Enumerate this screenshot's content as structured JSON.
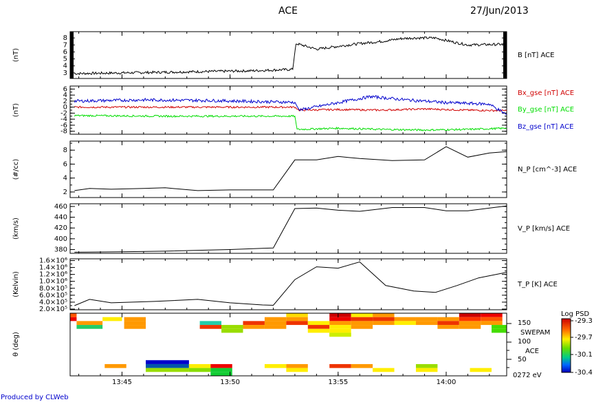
{
  "header": {
    "title": "ACE",
    "date": "27/Jun/2013"
  },
  "footer": {
    "credit": "Produced by CLWeb"
  },
  "chart_data": {
    "type": "line",
    "x_ticks": [
      {
        "t": 45.0,
        "label": "13:45"
      },
      {
        "t": 50.0,
        "label": "13:50"
      },
      {
        "t": 55.0,
        "label": "13:55"
      },
      {
        "t": 60.0,
        "label": "14:00"
      }
    ],
    "xlim_minutes_after_1300": [
      42.6,
      62.8
    ],
    "panels": [
      {
        "id": "b",
        "ylabel": "(nT)",
        "ylim": [
          2.2,
          8.9
        ],
        "yticks": [
          3,
          4,
          5,
          6,
          7,
          8
        ],
        "ytick_labels": [
          "3",
          "4",
          "5",
          "6",
          "7",
          "8"
        ],
        "series": [
          {
            "name": "B [nT] ACE",
            "color": "#000000",
            "noise": 0.18,
            "x": [
              42.8,
              45,
              47,
              49,
              51,
              52.9,
              53.05,
              53.3,
              54,
              55,
              56,
              57,
              57.9,
              58.5,
              59.5,
              60.5,
              61,
              62.8
            ],
            "y": [
              2.9,
              3.0,
              3.1,
              3.2,
              3.3,
              3.5,
              7.2,
              7.0,
              6.4,
              6.8,
              7.2,
              7.5,
              7.9,
              8.0,
              8.0,
              7.3,
              7.0,
              7.1
            ]
          }
        ]
      },
      {
        "id": "bxyz",
        "ylabel": "(nT)",
        "ylim": [
          -9,
          7
        ],
        "yticks": [
          -8,
          -6,
          -4,
          -2,
          0,
          2,
          4,
          6
        ],
        "ytick_labels": [
          "-8",
          "-6",
          "-4",
          "-2",
          "0",
          "2",
          "4",
          "6"
        ],
        "series": [
          {
            "name": "Bx_gse [nT] ACE",
            "color": "#d00000",
            "noise": 0.3,
            "x": [
              42.8,
              53.0,
              53.2,
              55,
              57,
              59,
              61,
              62.8
            ],
            "y": [
              0.0,
              0.0,
              -1.0,
              -0.8,
              -1.0,
              -0.6,
              -1.0,
              -1.2
            ]
          },
          {
            "name": "By_gse [nT] ACE",
            "color": "#00dd00",
            "noise": 0.3,
            "x": [
              42.8,
              47,
              53.0,
              53.1,
              55,
              57,
              59,
              61,
              62.8
            ],
            "y": [
              -2.8,
              -3.0,
              -3.0,
              -7.4,
              -7.0,
              -7.4,
              -7.6,
              -7.4,
              -7.0
            ]
          },
          {
            "name": "Bz_gse [nT] ACE",
            "color": "#0000cc",
            "noise": 0.5,
            "x": [
              42.8,
              46,
              49,
              53.0,
              53.2,
              55,
              56.5,
              58,
              60,
              62,
              62.8
            ],
            "y": [
              2.0,
              2.4,
              2.2,
              1.6,
              -1.0,
              1.5,
              3.5,
              2.5,
              1.5,
              1.0,
              -2.5
            ]
          }
        ]
      },
      {
        "id": "np",
        "ylabel": "(#/cc)",
        "ylim": [
          1.2,
          9.3
        ],
        "yticks": [
          2,
          4,
          6,
          8
        ],
        "ytick_labels": [
          "2",
          "4",
          "6",
          "8"
        ],
        "series": [
          {
            "name": "N_P [cm^-3] ACE",
            "color": "#000000",
            "noise": 0,
            "x": [
              42.8,
              43.5,
              44.5,
              46,
              47,
              48.5,
              50,
              52.0,
              53.0,
              54.0,
              55.0,
              56.0,
              57.5,
              59.0,
              60.0,
              61.0,
              62.0,
              62.8
            ],
            "y": [
              2.2,
              2.5,
              2.4,
              2.5,
              2.6,
              2.2,
              2.3,
              2.3,
              6.6,
              6.6,
              7.1,
              6.8,
              6.5,
              6.6,
              8.5,
              7.0,
              7.6,
              7.8
            ]
          }
        ]
      },
      {
        "id": "vp",
        "ylabel": "(km/s)",
        "ylim": [
          373,
          465
        ],
        "yticks": [
          380,
          400,
          420,
          440,
          460
        ],
        "ytick_labels": [
          "380",
          "400",
          "420",
          "440",
          "460"
        ],
        "series": [
          {
            "name": "V_P [km/s] ACE",
            "color": "#000000",
            "noise": 0,
            "x": [
              42.8,
              45,
              47,
              50,
              52.0,
              53.0,
              54.0,
              55.0,
              56.0,
              57.5,
              59.0,
              60.0,
              61.0,
              62.8
            ],
            "y": [
              375,
              376,
              377,
              380,
              383,
              456,
              457,
              453,
              451,
              458,
              458,
              452,
              452,
              461
            ]
          }
        ]
      },
      {
        "id": "tp",
        "ylabel": "(Kelvin)",
        "ylim": [
          180000,
          1650000
        ],
        "yticks": [
          200000,
          400000,
          600000,
          800000,
          1000000,
          1200000,
          1400000,
          1600000
        ],
        "ytick_labels": [
          "2.0×10⁵",
          "4.0×10⁵",
          "6.0×10⁵",
          "8.0×10⁵",
          "1.0×10⁶",
          "1.2×10⁶",
          "1.4×10⁶",
          "1.6×10⁶"
        ],
        "series": [
          {
            "name": "T_P [K] ACE",
            "color": "#000000",
            "noise": 0,
            "x": [
              42.8,
              43.5,
              44.5,
              46.5,
              48.5,
              50.0,
              51.5,
              52.0,
              53.0,
              54.0,
              55.0,
              56.0,
              57.2,
              58.5,
              59.5,
              60.5,
              61.5,
              62.8
            ],
            "y": [
              300000,
              480000,
              380000,
              420000,
              480000,
              380000,
              320000,
              310000,
              1050000,
              1420000,
              1380000,
              1560000,
              880000,
              720000,
              680000,
              880000,
              1100000,
              1260000
            ]
          }
        ]
      }
    ],
    "spectrogram": {
      "ylabel": "θ (deg)",
      "right_labels": [
        "150",
        "SWEPAM",
        "100",
        "ACE",
        "50",
        "0272 eV"
      ],
      "colorbar": {
        "title": "Log PSD",
        "ticks": [
          "-29.3",
          "-29.7",
          "-30.1",
          "-30.4"
        ]
      },
      "cells": [
        {
          "x0": 42.6,
          "x1": 42.9,
          "b": 1,
          "c": "#ee0000"
        },
        {
          "x0": 42.6,
          "x1": 42.9,
          "b": 0,
          "c": "#ff5500"
        },
        {
          "x0": 42.9,
          "x1": 44.1,
          "b": 2,
          "c": "#ff9900"
        },
        {
          "x0": 42.9,
          "x1": 44.1,
          "b": 3,
          "c": "#22cc66"
        },
        {
          "x0": 44.1,
          "x1": 45.0,
          "b": 1,
          "c": "#ffee00"
        },
        {
          "x0": 45.1,
          "x1": 46.1,
          "b": 1,
          "c": "#ff9900"
        },
        {
          "x0": 45.1,
          "x1": 46.1,
          "b": 2,
          "c": "#ff9900"
        },
        {
          "x0": 45.1,
          "x1": 46.1,
          "b": 3,
          "c": "#ff9900"
        },
        {
          "x0": 48.6,
          "x1": 49.6,
          "b": 2,
          "c": "#22ccaa"
        },
        {
          "x0": 48.6,
          "x1": 49.6,
          "b": 3,
          "c": "#ee3300"
        },
        {
          "x0": 49.6,
          "x1": 50.6,
          "b": 3,
          "c": "#99dd00"
        },
        {
          "x0": 49.6,
          "x1": 50.6,
          "b": 4,
          "c": "#99dd00"
        },
        {
          "x0": 50.6,
          "x1": 51.6,
          "b": 2,
          "c": "#ee3300"
        },
        {
          "x0": 50.6,
          "x1": 51.6,
          "b": 3,
          "c": "#ff9900"
        },
        {
          "x0": 51.6,
          "x1": 52.6,
          "b": 1,
          "c": "#ff9900"
        },
        {
          "x0": 51.6,
          "x1": 52.6,
          "b": 2,
          "c": "#ff9900"
        },
        {
          "x0": 51.6,
          "x1": 52.6,
          "b": 3,
          "c": "#ff9900"
        },
        {
          "x0": 52.6,
          "x1": 53.6,
          "b": 0,
          "c": "#ffdd00"
        },
        {
          "x0": 52.6,
          "x1": 53.6,
          "b": 1,
          "c": "#ff9900"
        },
        {
          "x0": 52.6,
          "x1": 53.6,
          "b": 2,
          "c": "#ee3300"
        },
        {
          "x0": 53.6,
          "x1": 54.6,
          "b": 2,
          "c": "#ffee00"
        },
        {
          "x0": 53.6,
          "x1": 54.6,
          "b": 3,
          "c": "#ee3300"
        },
        {
          "x0": 54.6,
          "x1": 55.6,
          "b": 0,
          "c": "#cc0000"
        },
        {
          "x0": 54.6,
          "x1": 55.6,
          "b": 1,
          "c": "#ee0000"
        },
        {
          "x0": 54.6,
          "x1": 55.6,
          "b": 2,
          "c": "#ff9900"
        },
        {
          "x0": 54.6,
          "x1": 55.6,
          "b": 3,
          "c": "#ffee00"
        },
        {
          "x0": 54.6,
          "x1": 55.6,
          "b": 4,
          "c": "#ffee00"
        },
        {
          "x0": 54.6,
          "x1": 55.6,
          "b": 5,
          "c": "#ccee00"
        },
        {
          "x0": 55.6,
          "x1": 56.6,
          "b": 0,
          "c": "#ffee00"
        },
        {
          "x0": 55.6,
          "x1": 56.6,
          "b": 1,
          "c": "#ee3300"
        },
        {
          "x0": 55.6,
          "x1": 56.6,
          "b": 2,
          "c": "#ff9900"
        },
        {
          "x0": 55.6,
          "x1": 56.6,
          "b": 3,
          "c": "#ff9900"
        },
        {
          "x0": 56.6,
          "x1": 57.6,
          "b": 0,
          "c": "#ff9900"
        },
        {
          "x0": 56.6,
          "x1": 57.6,
          "b": 1,
          "c": "#ee3300"
        },
        {
          "x0": 56.6,
          "x1": 57.6,
          "b": 2,
          "c": "#ff9900"
        },
        {
          "x0": 57.6,
          "x1": 58.6,
          "b": 1,
          "c": "#ff9900"
        },
        {
          "x0": 57.6,
          "x1": 58.6,
          "b": 2,
          "c": "#ffee00"
        },
        {
          "x0": 58.6,
          "x1": 59.6,
          "b": 1,
          "c": "#ff9900"
        },
        {
          "x0": 58.6,
          "x1": 59.6,
          "b": 2,
          "c": "#ff9900"
        },
        {
          "x0": 59.6,
          "x1": 60.6,
          "b": 1,
          "c": "#ff9900"
        },
        {
          "x0": 59.6,
          "x1": 60.6,
          "b": 2,
          "c": "#ee3300"
        },
        {
          "x0": 59.6,
          "x1": 60.6,
          "b": 3,
          "c": "#ff9900"
        },
        {
          "x0": 60.6,
          "x1": 61.6,
          "b": 0,
          "c": "#cc0000"
        },
        {
          "x0": 60.6,
          "x1": 61.6,
          "b": 1,
          "c": "#ff3300"
        },
        {
          "x0": 60.6,
          "x1": 61.6,
          "b": 2,
          "c": "#ff9900"
        },
        {
          "x0": 60.6,
          "x1": 61.6,
          "b": 3,
          "c": "#ff9900"
        },
        {
          "x0": 61.6,
          "x1": 62.6,
          "b": 0,
          "c": "#ee0000"
        },
        {
          "x0": 61.6,
          "x1": 62.6,
          "b": 1,
          "c": "#ff5500"
        },
        {
          "x0": 61.6,
          "x1": 62.6,
          "b": 2,
          "c": "#ff9900"
        },
        {
          "x0": 62.1,
          "x1": 62.8,
          "b": 3,
          "c": "#44dd00"
        },
        {
          "x0": 62.1,
          "x1": 62.8,
          "b": 4,
          "c": "#44dd00"
        },
        {
          "x0": 53.6,
          "x1": 54.6,
          "b": 4,
          "c": "#ffee00"
        },
        {
          "x0": 54.6,
          "x1": 55.6,
          "b": 5,
          "c": "#ccee00"
        },
        {
          "x0": 44.2,
          "x1": 45.2,
          "b": 13,
          "c": "#ff9900"
        },
        {
          "x0": 46.1,
          "x1": 48.1,
          "b": 12,
          "c": "#0000cc"
        },
        {
          "x0": 46.1,
          "x1": 48.1,
          "b": 13,
          "c": "#0055aa"
        },
        {
          "x0": 46.1,
          "x1": 48.1,
          "b": 14,
          "c": "#99dd00"
        },
        {
          "x0": 48.1,
          "x1": 49.1,
          "b": 13,
          "c": "#ffee00"
        },
        {
          "x0": 48.1,
          "x1": 49.1,
          "b": 14,
          "c": "#88dd00"
        },
        {
          "x0": 49.1,
          "x1": 50.1,
          "b": 13,
          "c": "#ee0000"
        },
        {
          "x0": 49.1,
          "x1": 50.1,
          "b": 14,
          "c": "#11cc33"
        },
        {
          "x0": 49.1,
          "x1": 50.1,
          "b": 15,
          "c": "#11cc33"
        },
        {
          "x0": 51.6,
          "x1": 52.6,
          "b": 13,
          "c": "#ffee00"
        },
        {
          "x0": 52.6,
          "x1": 53.6,
          "b": 13,
          "c": "#ff9900"
        },
        {
          "x0": 52.6,
          "x1": 53.6,
          "b": 14,
          "c": "#ffee00"
        },
        {
          "x0": 54.6,
          "x1": 55.6,
          "b": 13,
          "c": "#ee3300"
        },
        {
          "x0": 55.6,
          "x1": 56.6,
          "b": 13,
          "c": "#ff9900"
        },
        {
          "x0": 56.6,
          "x1": 57.6,
          "b": 14,
          "c": "#ffee00"
        },
        {
          "x0": 58.6,
          "x1": 59.6,
          "b": 13,
          "c": "#99dd00"
        },
        {
          "x0": 58.6,
          "x1": 59.6,
          "b": 14,
          "c": "#ffee00"
        },
        {
          "x0": 61.1,
          "x1": 62.1,
          "b": 14,
          "c": "#ffee00"
        }
      ]
    }
  }
}
